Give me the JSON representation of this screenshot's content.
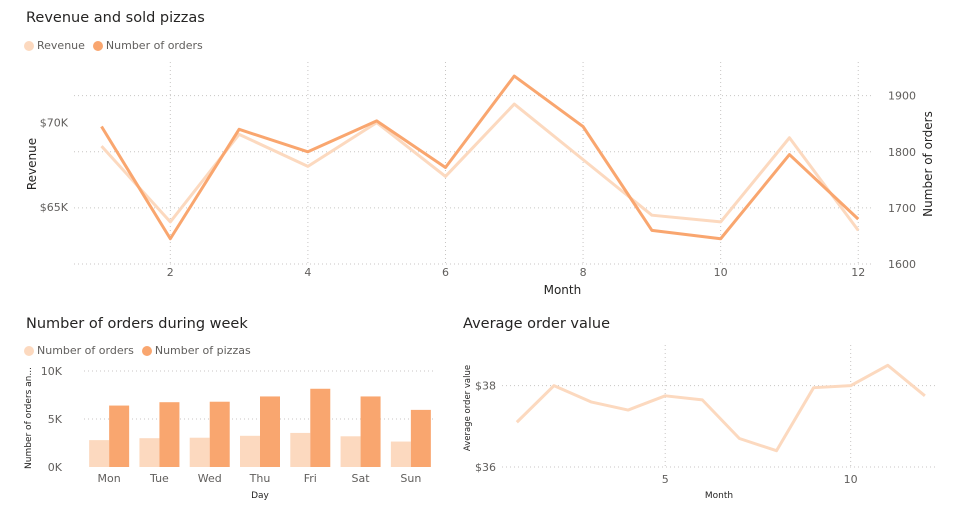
{
  "colors": {
    "light": "#fcd9bf",
    "dark": "#f9a66f",
    "grid": "#c8c6c4",
    "axis_text": "#605e5c",
    "title_text": "#252423"
  },
  "revenue_chart": {
    "title": "Revenue and sold pizzas",
    "legend": [
      "Revenue",
      "Number of orders"
    ]
  },
  "week_chart": {
    "title": "Number of orders during week",
    "legend": [
      "Number of orders",
      "Number of pizzas"
    ]
  },
  "aov_chart": {
    "title": "Average order value"
  },
  "chart_data": [
    {
      "type": "line",
      "title": "Revenue and sold pizzas",
      "xlabel": "Month",
      "ylabel": "Revenue",
      "y2label": "Number of orders",
      "x": [
        1,
        2,
        3,
        4,
        5,
        6,
        7,
        8,
        9,
        10,
        11,
        12
      ],
      "xticks": [
        2,
        4,
        6,
        8,
        10,
        12
      ],
      "xlim": [
        0.6,
        12.2
      ],
      "ylim": [
        61600,
        73600
      ],
      "yticks": [
        65000,
        70000
      ],
      "ytick_labels": [
        "$65K",
        "$70K"
      ],
      "y2lim": [
        1600,
        1960
      ],
      "y2ticks": [
        1600,
        1700,
        1800,
        1900
      ],
      "y2tick_labels": [
        "1600",
        "1700",
        "1800",
        "1900"
      ],
      "grid": true,
      "legend_position": "top-left",
      "series": [
        {
          "name": "Revenue",
          "axis": "left",
          "values": [
            68600,
            64100,
            69300,
            67400,
            70000,
            66800,
            71100,
            67800,
            64500,
            64100,
            69100,
            63600
          ]
        },
        {
          "name": "Number of orders",
          "axis": "right",
          "values": [
            1845,
            1645,
            1840,
            1800,
            1855,
            1772,
            1935,
            1845,
            1660,
            1645,
            1795,
            1680
          ]
        }
      ]
    },
    {
      "type": "bar",
      "title": "Number of orders during week",
      "xlabel": "Day",
      "ylabel": "Number of orders an...",
      "categories": [
        "Mon",
        "Tue",
        "Wed",
        "Thu",
        "Fri",
        "Sat",
        "Sun"
      ],
      "ylim": [
        0,
        10000
      ],
      "yticks": [
        0,
        5000,
        10000
      ],
      "ytick_labels": [
        "0K",
        "5K",
        "10K"
      ],
      "grid": true,
      "legend_position": "top-left",
      "series": [
        {
          "name": "Number of orders",
          "values": [
            2800,
            3000,
            3050,
            3250,
            3550,
            3200,
            2650
          ]
        },
        {
          "name": "Number of pizzas",
          "values": [
            6400,
            6750,
            6800,
            7350,
            8150,
            7350,
            5950
          ]
        }
      ]
    },
    {
      "type": "line",
      "title": "Average order value",
      "xlabel": "Month",
      "ylabel": "Average order value",
      "x": [
        1,
        2,
        3,
        4,
        5,
        6,
        7,
        8,
        9,
        10,
        11,
        12
      ],
      "xticks": [
        5,
        10
      ],
      "xlim": [
        0.6,
        12.3
      ],
      "ylim": [
        35.95,
        39.0
      ],
      "yticks": [
        36,
        38
      ],
      "ytick_labels": [
        "$36",
        "$38"
      ],
      "grid": true,
      "series": [
        {
          "name": "Average order value",
          "values": [
            37.1,
            38.0,
            37.6,
            37.4,
            37.75,
            37.65,
            36.7,
            36.4,
            37.95,
            38.0,
            38.5,
            37.75
          ]
        }
      ]
    }
  ]
}
